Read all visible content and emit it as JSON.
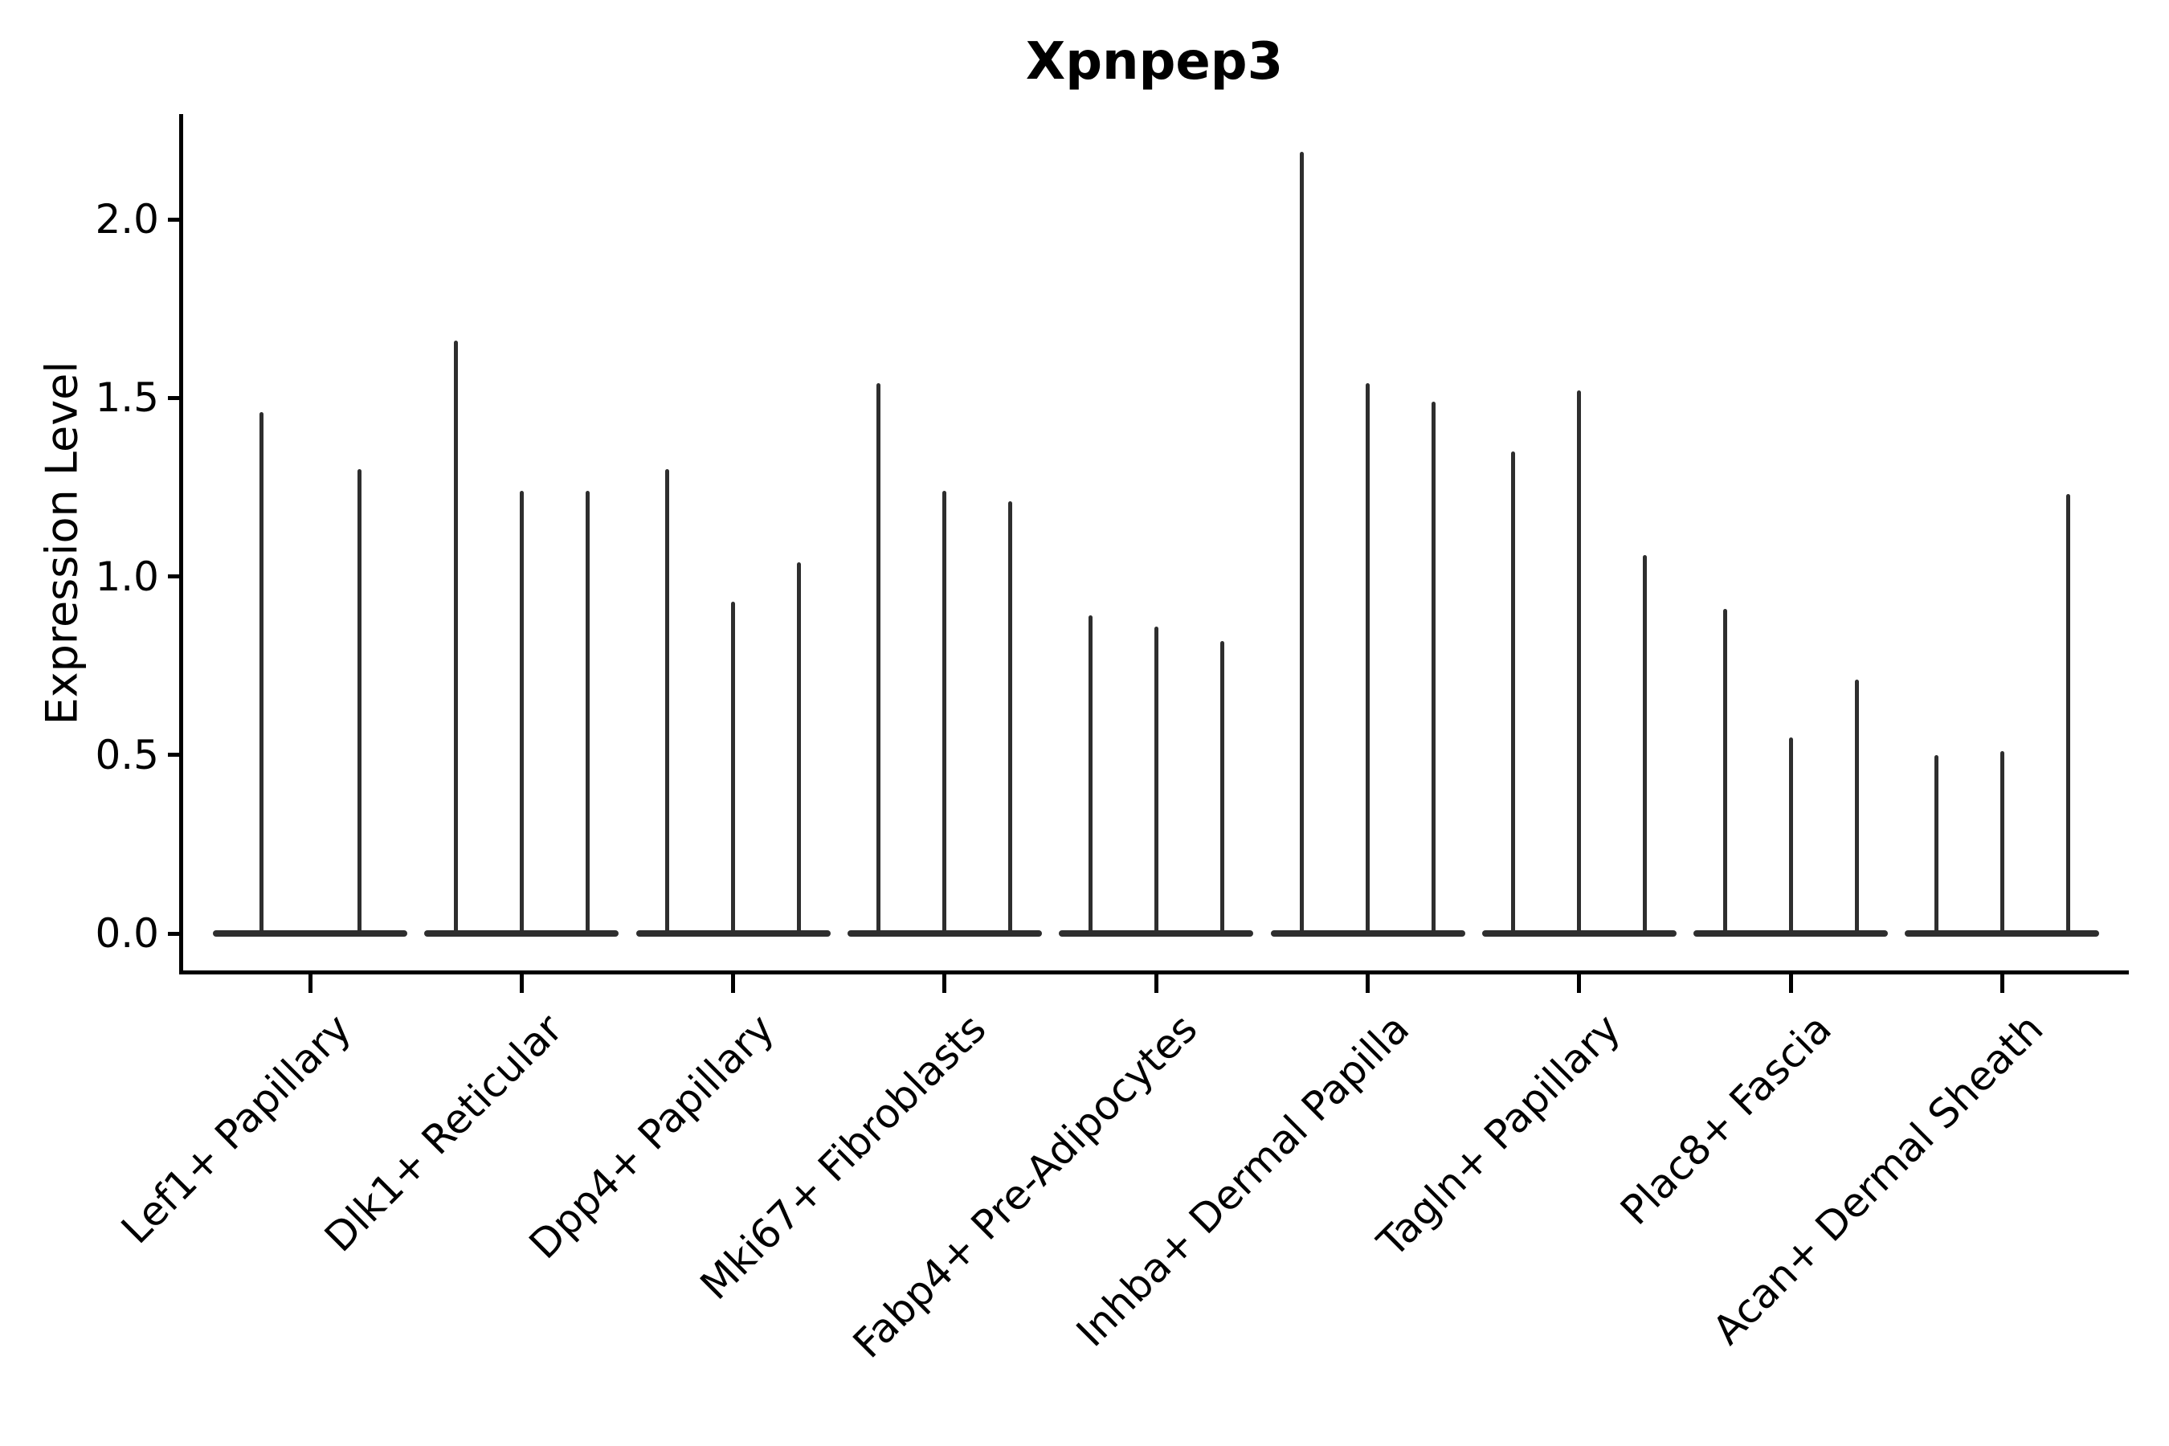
{
  "title": "Xpnpep3",
  "axes": {
    "ylabel": "Expression Level",
    "ytick_labels": [
      "0.0",
      "0.5",
      "1.0",
      "1.5",
      "2.0"
    ]
  },
  "colors": {
    "violin": "#2e2e2e",
    "axis": "#000000",
    "text": "#000000",
    "background": "#ffffff"
  },
  "chart_data": {
    "type": "violin",
    "title": "Xpnpep3",
    "xlabel": "",
    "ylabel": "Expression Level",
    "ylim": [
      0,
      2.3
    ],
    "yticks": [
      0.0,
      0.5,
      1.0,
      1.5,
      2.0
    ],
    "grid": false,
    "legend": "none",
    "x_tick_rotation": 45,
    "style_note": "Sparse single-cell expression violins: each violin collapses to a flat baseline at 0 with one thin vertical spike reaching the maximum expression value.",
    "categories": [
      "Lef1+ Papillary",
      "Dlk1+ Reticular",
      "Dpp4+ Papillary",
      "Mki67+ Fibroblasts",
      "Fabp4+ Pre-Adipocytes",
      "Inhba+ Dermal Papilla",
      "Tagln+ Papillary",
      "Plac8+ Fascia",
      "Acan+ Dermal Sheath"
    ],
    "series": [
      {
        "category": "Lef1+ Papillary",
        "spike_max_values": [
          1.46,
          1.3
        ]
      },
      {
        "category": "Dlk1+ Reticular",
        "spike_max_values": [
          1.66,
          1.24,
          1.24
        ]
      },
      {
        "category": "Dpp4+ Papillary",
        "spike_max_values": [
          1.3,
          0.93,
          1.04
        ]
      },
      {
        "category": "Mki67+ Fibroblasts",
        "spike_max_values": [
          1.54,
          1.24,
          1.21
        ]
      },
      {
        "category": "Fabp4+ Pre-Adipocytes",
        "spike_max_values": [
          0.89,
          0.86,
          0.82
        ]
      },
      {
        "category": "Inhba+ Dermal Papilla",
        "spike_max_values": [
          2.19,
          1.54,
          1.49
        ]
      },
      {
        "category": "Tagln+ Papillary",
        "spike_max_values": [
          1.35,
          1.52,
          1.06
        ]
      },
      {
        "category": "Plac8+ Fascia",
        "spike_max_values": [
          0.91,
          0.55,
          0.71
        ]
      },
      {
        "category": "Acan+ Dermal Sheath",
        "spike_max_values": [
          0.5,
          0.51,
          1.23
        ]
      }
    ]
  }
}
